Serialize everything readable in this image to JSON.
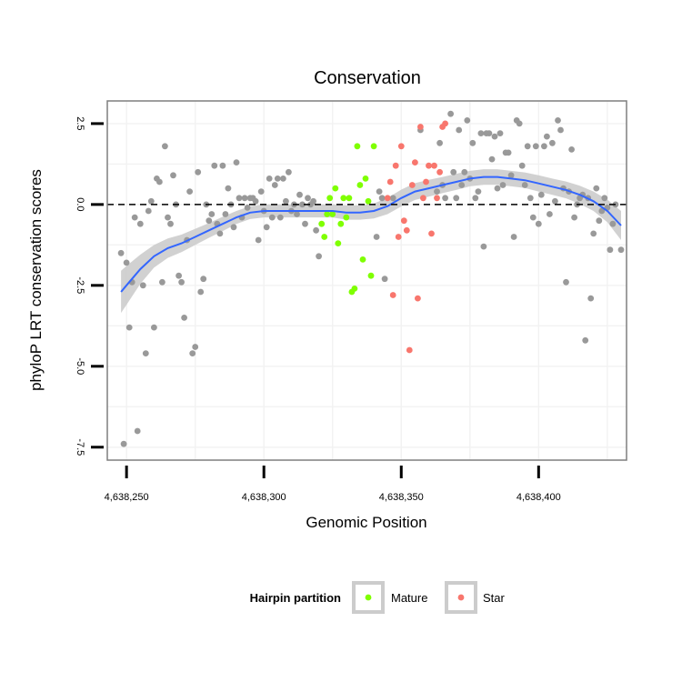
{
  "chart_data": {
    "type": "scatter",
    "title": "Conservation",
    "xlabel": "Genomic Position",
    "ylabel": "phyloP LRT conservation scores",
    "xlim": [
      4638243,
      4638432
    ],
    "ylim": [
      -7.9,
      3.2
    ],
    "x_ticks": [
      {
        "value": 4638250,
        "label": "4,638,250"
      },
      {
        "value": 4638300,
        "label": "4,638,300"
      },
      {
        "value": 4638350,
        "label": "4,638,350"
      },
      {
        "value": 4638400,
        "label": "4,638,400"
      }
    ],
    "y_ticks": [
      {
        "value": 2.5,
        "label": "2.5"
      },
      {
        "value": 0.0,
        "label": "0.0"
      },
      {
        "value": -2.5,
        "label": "-2.5"
      },
      {
        "value": -5.0,
        "label": "-5.0"
      },
      {
        "value": -7.5,
        "label": "-7.5"
      }
    ],
    "reference_line": {
      "y": 0,
      "style": "dashed",
      "color": "#000000"
    },
    "colors": {
      "other": "#999999",
      "Mature": "#7FFF00",
      "Star": "#F8766D",
      "smooth": "#3366FF",
      "band": "#cccccc",
      "grid": "#f2f2f2",
      "panel_border": "#7f7f7f"
    },
    "legend": {
      "title": "Hairpin partition",
      "position": "bottom",
      "entries": [
        {
          "name": "Mature",
          "color": "#7FFF00"
        },
        {
          "name": "Star",
          "color": "#F8766D"
        }
      ]
    },
    "series": [
      {
        "name": "other",
        "points": [
          [
            4638248,
            -1.5
          ],
          [
            4638249,
            -7.4
          ],
          [
            4638250,
            -1.8
          ],
          [
            4638251,
            -3.8
          ],
          [
            4638252,
            -2.4
          ],
          [
            4638253,
            -0.4
          ],
          [
            4638254,
            -7.0
          ],
          [
            4638255,
            -0.6
          ],
          [
            4638256,
            -2.5
          ],
          [
            4638257,
            -4.6
          ],
          [
            4638258,
            -0.2
          ],
          [
            4638259,
            0.1
          ],
          [
            4638260,
            -3.8
          ],
          [
            4638261,
            0.8
          ],
          [
            4638262,
            0.7
          ],
          [
            4638263,
            -2.4
          ],
          [
            4638264,
            1.8
          ],
          [
            4638265,
            -0.4
          ],
          [
            4638266,
            -0.6
          ],
          [
            4638267,
            0.9
          ],
          [
            4638268,
            0.0
          ],
          [
            4638269,
            -2.2
          ],
          [
            4638270,
            -2.4
          ],
          [
            4638271,
            -3.5
          ],
          [
            4638272,
            -1.1
          ],
          [
            4638273,
            0.4
          ],
          [
            4638274,
            -4.6
          ],
          [
            4638275,
            -4.4
          ],
          [
            4638276,
            1.0
          ],
          [
            4638277,
            -2.7
          ],
          [
            4638278,
            -2.3
          ],
          [
            4638279,
            0.0
          ],
          [
            4638280,
            -0.5
          ],
          [
            4638281,
            -0.3
          ],
          [
            4638282,
            1.2
          ],
          [
            4638283,
            -0.6
          ],
          [
            4638284,
            -0.9
          ],
          [
            4638285,
            1.2
          ],
          [
            4638286,
            -0.3
          ],
          [
            4638287,
            0.5
          ],
          [
            4638288,
            0.0
          ],
          [
            4638289,
            -0.7
          ],
          [
            4638290,
            1.3
          ],
          [
            4638291,
            0.2
          ],
          [
            4638292,
            -0.4
          ],
          [
            4638293,
            0.2
          ],
          [
            4638294,
            -0.1
          ],
          [
            4638295,
            0.2
          ],
          [
            4638296,
            0.2
          ],
          [
            4638297,
            0.1
          ],
          [
            4638298,
            -1.1
          ],
          [
            4638299,
            0.4
          ],
          [
            4638300,
            -0.2
          ],
          [
            4638301,
            -0.7
          ],
          [
            4638302,
            0.8
          ],
          [
            4638303,
            -0.4
          ],
          [
            4638304,
            0.6
          ],
          [
            4638305,
            0.8
          ],
          [
            4638306,
            -0.4
          ],
          [
            4638307,
            0.8
          ],
          [
            4638308,
            0.1
          ],
          [
            4638309,
            1.0
          ],
          [
            4638310,
            -0.2
          ],
          [
            4638311,
            0.0
          ],
          [
            4638312,
            -0.3
          ],
          [
            4638313,
            0.3
          ],
          [
            4638314,
            0.0
          ],
          [
            4638315,
            -0.6
          ],
          [
            4638316,
            0.2
          ],
          [
            4638317,
            0.0
          ],
          [
            4638318,
            0.1
          ],
          [
            4638319,
            -0.8
          ],
          [
            4638320,
            -1.6
          ],
          [
            4638341,
            -1.0
          ],
          [
            4638342,
            0.4
          ],
          [
            4638343,
            0.2
          ],
          [
            4638344,
            -2.3
          ],
          [
            4638347,
            0.2
          ],
          [
            4638357,
            2.3
          ],
          [
            4638363,
            0.4
          ],
          [
            4638364,
            1.9
          ],
          [
            4638365,
            0.6
          ],
          [
            4638366,
            0.2
          ],
          [
            4638368,
            2.8
          ],
          [
            4638369,
            1.0
          ],
          [
            4638370,
            0.2
          ],
          [
            4638371,
            2.3
          ],
          [
            4638372,
            0.6
          ],
          [
            4638373,
            1.0
          ],
          [
            4638374,
            2.6
          ],
          [
            4638375,
            0.8
          ],
          [
            4638376,
            1.9
          ],
          [
            4638377,
            0.2
          ],
          [
            4638378,
            0.4
          ],
          [
            4638379,
            2.2
          ],
          [
            4638380,
            -1.3
          ],
          [
            4638381,
            2.2
          ],
          [
            4638382,
            2.2
          ],
          [
            4638383,
            1.4
          ],
          [
            4638384,
            2.1
          ],
          [
            4638385,
            0.5
          ],
          [
            4638386,
            2.2
          ],
          [
            4638387,
            0.6
          ],
          [
            4638388,
            1.6
          ],
          [
            4638389,
            1.6
          ],
          [
            4638390,
            0.9
          ],
          [
            4638391,
            -1.0
          ],
          [
            4638392,
            2.6
          ],
          [
            4638393,
            2.5
          ],
          [
            4638394,
            1.2
          ],
          [
            4638395,
            0.6
          ],
          [
            4638396,
            1.8
          ],
          [
            4638397,
            0.2
          ],
          [
            4638398,
            -0.4
          ],
          [
            4638399,
            1.8
          ],
          [
            4638400,
            -0.6
          ],
          [
            4638401,
            0.3
          ],
          [
            4638402,
            1.8
          ],
          [
            4638403,
            2.1
          ],
          [
            4638404,
            -0.3
          ],
          [
            4638405,
            1.9
          ],
          [
            4638406,
            0.1
          ],
          [
            4638407,
            2.6
          ],
          [
            4638408,
            2.3
          ],
          [
            4638409,
            0.5
          ],
          [
            4638410,
            -2.4
          ],
          [
            4638411,
            0.4
          ],
          [
            4638412,
            1.7
          ],
          [
            4638413,
            -0.4
          ],
          [
            4638414,
            0.0
          ],
          [
            4638415,
            0.2
          ],
          [
            4638416,
            0.3
          ],
          [
            4638417,
            -4.2
          ],
          [
            4638418,
            0.2
          ],
          [
            4638419,
            -2.9
          ],
          [
            4638420,
            -0.9
          ],
          [
            4638421,
            0.5
          ],
          [
            4638422,
            -0.5
          ],
          [
            4638423,
            -0.2
          ],
          [
            4638424,
            0.2
          ],
          [
            4638425,
            -0.1
          ],
          [
            4638426,
            -1.4
          ],
          [
            4638427,
            -0.6
          ],
          [
            4638428,
            0.0
          ],
          [
            4638430,
            -1.4
          ]
        ]
      },
      {
        "name": "Mature",
        "points": [
          [
            4638321,
            -0.6
          ],
          [
            4638322,
            -1.0
          ],
          [
            4638323,
            -0.3
          ],
          [
            4638324,
            0.2
          ],
          [
            4638325,
            -0.3
          ],
          [
            4638326,
            0.5
          ],
          [
            4638327,
            -1.2
          ],
          [
            4638328,
            -0.6
          ],
          [
            4638329,
            0.2
          ],
          [
            4638330,
            -0.4
          ],
          [
            4638331,
            0.2
          ],
          [
            4638332,
            -2.7
          ],
          [
            4638333,
            -2.6
          ],
          [
            4638334,
            1.8
          ],
          [
            4638335,
            0.6
          ],
          [
            4638336,
            -1.7
          ],
          [
            4638337,
            0.8
          ],
          [
            4638338,
            0.1
          ],
          [
            4638339,
            -2.2
          ],
          [
            4638340,
            1.8
          ]
        ]
      },
      {
        "name": "Star",
        "points": [
          [
            4638345,
            0.2
          ],
          [
            4638346,
            0.7
          ],
          [
            4638347,
            -2.8
          ],
          [
            4638348,
            1.2
          ],
          [
            4638349,
            -1.0
          ],
          [
            4638350,
            1.8
          ],
          [
            4638351,
            -0.5
          ],
          [
            4638352,
            -0.8
          ],
          [
            4638353,
            -4.5
          ],
          [
            4638354,
            0.6
          ],
          [
            4638355,
            1.3
          ],
          [
            4638356,
            -2.9
          ],
          [
            4638357,
            2.4
          ],
          [
            4638358,
            0.2
          ],
          [
            4638359,
            0.7
          ],
          [
            4638360,
            1.2
          ],
          [
            4638361,
            -0.9
          ],
          [
            4638362,
            1.2
          ],
          [
            4638363,
            0.2
          ],
          [
            4638364,
            1.0
          ],
          [
            4638365,
            2.4
          ],
          [
            4638366,
            2.5
          ]
        ]
      }
    ],
    "smooth_fit": {
      "x": [
        4638248,
        4638250,
        4638255,
        4638260,
        4638265,
        4638270,
        4638275,
        4638280,
        4638285,
        4638290,
        4638295,
        4638300,
        4638305,
        4638310,
        4638315,
        4638320,
        4638325,
        4638330,
        4638335,
        4638340,
        4638345,
        4638350,
        4638355,
        4638360,
        4638365,
        4638370,
        4638375,
        4638380,
        4638385,
        4638390,
        4638395,
        4638400,
        4638405,
        4638410,
        4638415,
        4638420,
        4638425,
        4638430
      ],
      "y": [
        -2.7,
        -2.5,
        -2.0,
        -1.6,
        -1.35,
        -1.2,
        -1.0,
        -0.8,
        -0.6,
        -0.4,
        -0.25,
        -0.2,
        -0.2,
        -0.2,
        -0.2,
        -0.2,
        -0.2,
        -0.25,
        -0.25,
        -0.2,
        -0.05,
        0.2,
        0.4,
        0.5,
        0.6,
        0.7,
        0.8,
        0.85,
        0.85,
        0.8,
        0.75,
        0.65,
        0.55,
        0.45,
        0.3,
        0.1,
        -0.2,
        -0.65
      ],
      "se": [
        0.65,
        0.6,
        0.45,
        0.35,
        0.3,
        0.27,
        0.25,
        0.23,
        0.22,
        0.2,
        0.2,
        0.2,
        0.2,
        0.2,
        0.2,
        0.2,
        0.2,
        0.22,
        0.22,
        0.23,
        0.25,
        0.26,
        0.26,
        0.26,
        0.25,
        0.25,
        0.24,
        0.24,
        0.24,
        0.24,
        0.24,
        0.25,
        0.25,
        0.26,
        0.28,
        0.3,
        0.35,
        0.45
      ]
    }
  }
}
